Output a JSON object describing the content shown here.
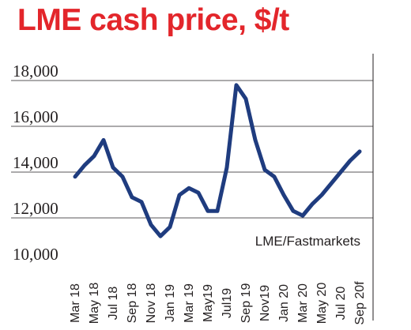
{
  "title": "LME cash price, $/t",
  "chart_data": {
    "type": "line",
    "title": "LME cash price, $/t",
    "source": "LME/Fastmarkets",
    "xlabel": "",
    "ylabel": "",
    "ylim": [
      10000,
      19000
    ],
    "yticks": [
      10000,
      12000,
      14000,
      16000,
      18000
    ],
    "ytick_labels": [
      "10,000",
      "12,000",
      "14,000",
      "16,000",
      "18,000"
    ],
    "x_tick_labels": [
      "Mar 18",
      "May 18",
      "Jul 18",
      "Sep 18",
      "Nov 18",
      "Jan 19",
      "Mar 19",
      "May19",
      "Jul19",
      "Sep 19",
      "Nov19",
      "Jan 20",
      "Mar 20",
      "May 20",
      "Jul 20",
      "Sep 20f"
    ],
    "grid": "horizontal",
    "line_color": "#1f3c7f",
    "x": [
      "Mar 18",
      "Apr 18",
      "May 18",
      "Jun 18",
      "Jul 18",
      "Aug 18",
      "Sep 18",
      "Oct 18",
      "Nov 18",
      "Dec 18",
      "Jan 19",
      "Feb 19",
      "Mar 19",
      "Apr 19",
      "May 19",
      "Jun 19",
      "Jul 19",
      "Aug 19",
      "Sep 19",
      "Oct 19",
      "Nov 19",
      "Dec 19",
      "Jan 20",
      "Feb 20",
      "Mar 20",
      "Apr 20",
      "May 20",
      "Jun 20",
      "Jul 20",
      "Aug 20",
      "Sep 20"
    ],
    "series": [
      {
        "values": [
          13800,
          14300,
          14700,
          15400,
          14200,
          13800,
          12900,
          12700,
          11700,
          11200,
          11600,
          13000,
          13300,
          13100,
          12300,
          12300,
          14200,
          17800,
          17200,
          15400,
          14100,
          13800,
          13000,
          12300,
          12100,
          12600,
          13000,
          13500,
          14000,
          14500,
          14900
        ]
      }
    ]
  }
}
